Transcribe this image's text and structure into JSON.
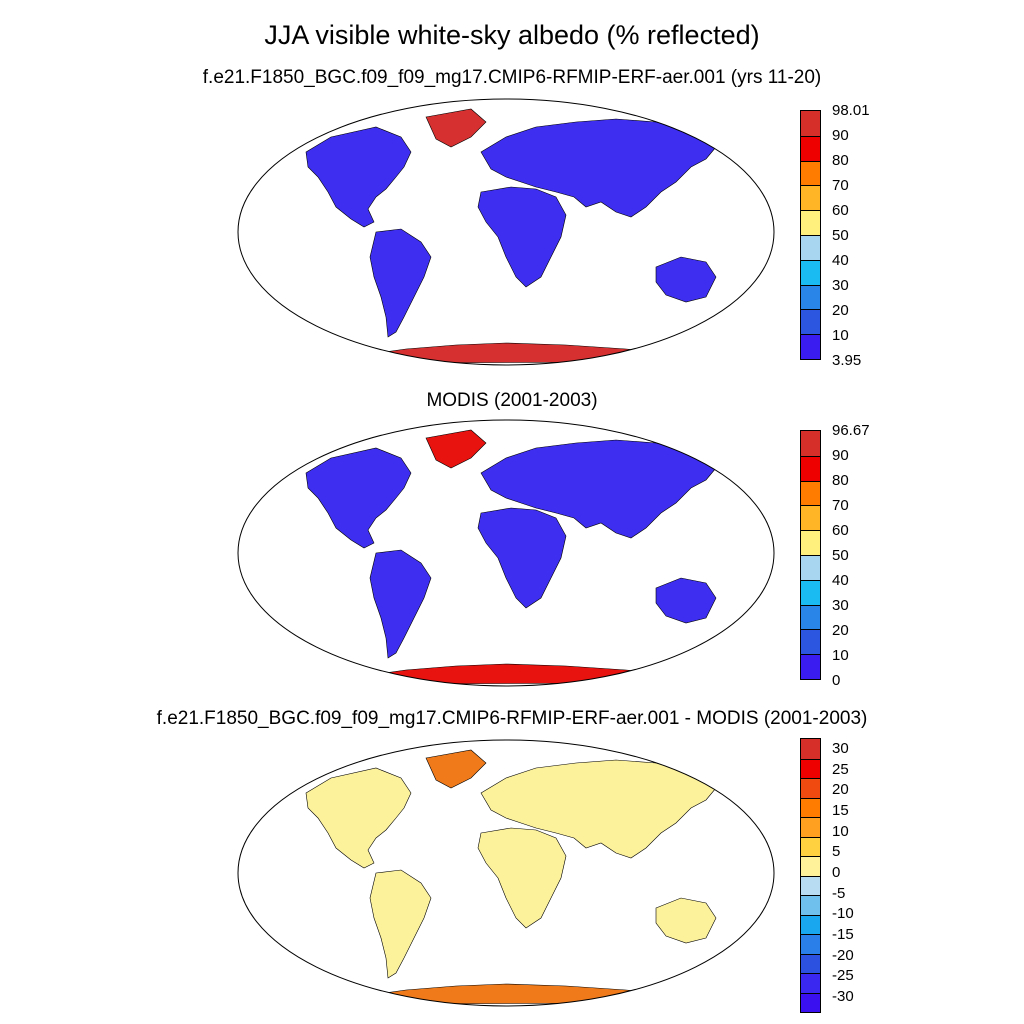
{
  "title": "JJA visible white-sky albedo (% reflected)",
  "panels": [
    {
      "subtitle": "f.e21.F1850_BGC.f09_f09_mg17.CMIP6-RFMIP-ERF-aer.001 (yrs 11-20)",
      "colorbar_labels": [
        "98.01",
        "90",
        "80",
        "70",
        "60",
        "50",
        "40",
        "30",
        "20",
        "10",
        "3.95"
      ],
      "colorbar_colors": [
        "#d62f2a",
        "#ee0000",
        "#ff7c00",
        "#ffb526",
        "#fff07e",
        "#a8d6f0",
        "#19bbf2",
        "#2985e8",
        "#2c56e0",
        "#3a1bf0"
      ],
      "land_color": "#3d2ef0",
      "ice_color": "#d63030"
    },
    {
      "subtitle": "MODIS (2001-2003)",
      "colorbar_labels": [
        "96.67",
        "90",
        "80",
        "70",
        "60",
        "50",
        "40",
        "30",
        "20",
        "10",
        "0"
      ],
      "colorbar_colors": [
        "#d62f2a",
        "#ee0000",
        "#ff7c00",
        "#ffb526",
        "#fff07e",
        "#a8d6f0",
        "#19bbf2",
        "#2985e8",
        "#2c56e0",
        "#3a1bf0"
      ],
      "land_color": "#3d2ef0",
      "ice_color": "#e8120f"
    },
    {
      "subtitle": "f.e21.F1850_BGC.f09_f09_mg17.CMIP6-RFMIP-ERF-aer.001 - MODIS (2001-2003)",
      "colorbar_labels": [
        "30",
        "25",
        "20",
        "15",
        "10",
        "5",
        "0",
        "-5",
        "-10",
        "-15",
        "-20",
        "-25",
        "-30"
      ],
      "colorbar_colors": [
        "#d62f2a",
        "#ee0000",
        "#f04a10",
        "#ff7c00",
        "#ffa020",
        "#ffd040",
        "#fff29a",
        "#b8ddf2",
        "#70c0ee",
        "#19a8f0",
        "#2a80e8",
        "#2c50e0",
        "#3a28f0",
        "#3a10f0"
      ],
      "land_color": "#fdf29c",
      "ice_color": "#f07a1a"
    }
  ]
}
